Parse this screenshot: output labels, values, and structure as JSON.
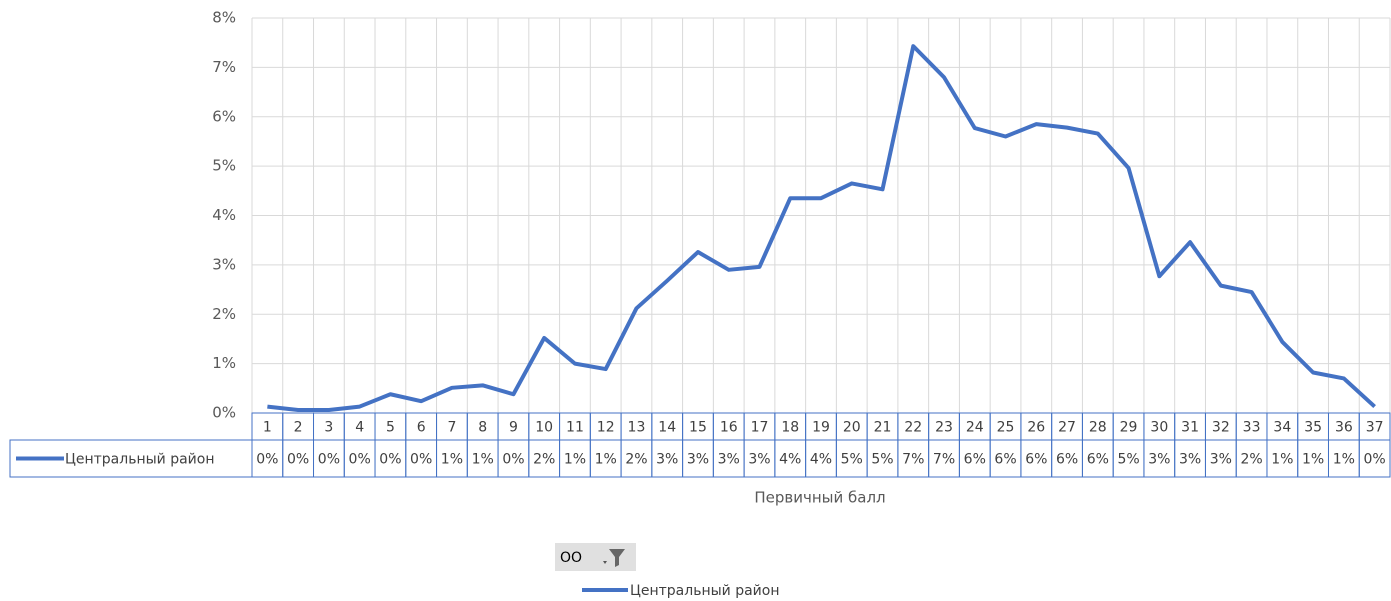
{
  "chart_data": {
    "type": "line",
    "x_label": "Первичный балл",
    "filter_button": "ОО",
    "categories": [
      "1",
      "2",
      "3",
      "4",
      "5",
      "6",
      "7",
      "8",
      "9",
      "10",
      "11",
      "12",
      "13",
      "14",
      "15",
      "16",
      "17",
      "18",
      "19",
      "20",
      "21",
      "22",
      "23",
      "24",
      "25",
      "26",
      "27",
      "28",
      "29",
      "30",
      "31",
      "32",
      "33",
      "34",
      "35",
      "36",
      "37"
    ],
    "series": [
      {
        "name": "Центральный район",
        "color": "#4472c4",
        "values": [
          0.13,
          0.06,
          0.06,
          0.13,
          0.38,
          0.24,
          0.51,
          0.56,
          0.38,
          1.52,
          1.0,
          0.89,
          2.12,
          2.68,
          3.26,
          2.9,
          2.96,
          4.35,
          4.35,
          4.65,
          4.53,
          7.43,
          6.8,
          5.77,
          5.6,
          5.85,
          5.78,
          5.66,
          4.96,
          2.77,
          3.46,
          2.58,
          2.45,
          1.44,
          0.82,
          0.7,
          0.13
        ],
        "value_labels": [
          "0%",
          "0%",
          "0%",
          "0%",
          "0%",
          "0%",
          "1%",
          "1%",
          "0%",
          "2%",
          "1%",
          "1%",
          "2%",
          "3%",
          "3%",
          "3%",
          "3%",
          "4%",
          "4%",
          "5%",
          "5%",
          "7%",
          "7%",
          "6%",
          "6%",
          "6%",
          "6%",
          "6%",
          "5%",
          "3%",
          "3%",
          "3%",
          "2%",
          "1%",
          "1%",
          "1%",
          "0%"
        ]
      }
    ],
    "ylim": [
      0,
      8
    ],
    "yticks": [
      {
        "value": 0,
        "label": "0%"
      },
      {
        "value": 1,
        "label": "1%"
      },
      {
        "value": 2,
        "label": "2%"
      },
      {
        "value": 3,
        "label": "3%"
      },
      {
        "value": 4,
        "label": "4%"
      },
      {
        "value": 5,
        "label": "5%"
      },
      {
        "value": 6,
        "label": "6%"
      },
      {
        "value": 7,
        "label": "7%"
      },
      {
        "value": 8,
        "label": "8%"
      }
    ],
    "grid": true,
    "data_table": true,
    "legend": "bottom"
  }
}
